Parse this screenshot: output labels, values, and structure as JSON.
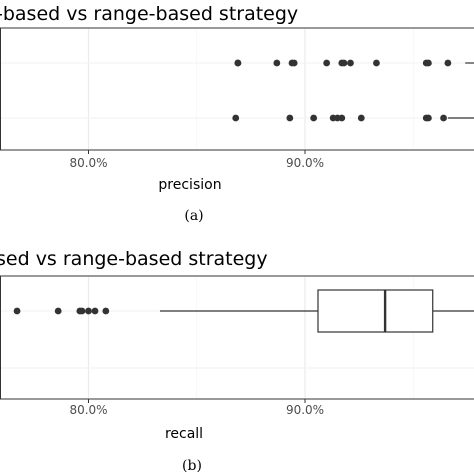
{
  "chart_data": [
    {
      "panel": "(a)",
      "type": "box",
      "title": "-based vs range-based strategy",
      "xlabel": "precision",
      "xtick_labels": [
        "80.0%",
        "90.0%"
      ],
      "xtick_values": [
        80.0,
        90.0
      ],
      "xlim": [
        76.0,
        100.3
      ],
      "grid": true,
      "rows": [
        {
          "row": "upper",
          "outliers": [
            86.9,
            86.9,
            88.7,
            89.4,
            89.5,
            91.0,
            91.7,
            91.8,
            92.1,
            93.3,
            95.6,
            95.7,
            96.6
          ],
          "whisker_low": 97.4,
          "whisker_high": 100.3
        },
        {
          "row": "lower",
          "outliers": [
            86.8,
            89.3,
            90.4,
            91.3,
            91.5,
            91.7,
            92.6,
            95.6,
            95.7,
            96.4
          ],
          "whisker_low": 96.6,
          "whisker_high": 100.3
        }
      ]
    },
    {
      "panel": "(b)",
      "type": "box",
      "title": "sed vs range-based strategy",
      "xlabel": "recall",
      "xtick_labels": [
        "80.0%",
        "90.0%"
      ],
      "xtick_values": [
        80.0,
        90.0
      ],
      "xlim": [
        76.0,
        99.4
      ],
      "grid": true,
      "rows": [
        {
          "row": "upper",
          "outliers": [
            76.7,
            78.6,
            79.6,
            79.7,
            80.0,
            80.3,
            80.8
          ],
          "whisker_low": 83.3,
          "q1": 90.6,
          "median": 93.7,
          "q3": 95.9,
          "whisker_high": 99.4
        }
      ]
    }
  ]
}
